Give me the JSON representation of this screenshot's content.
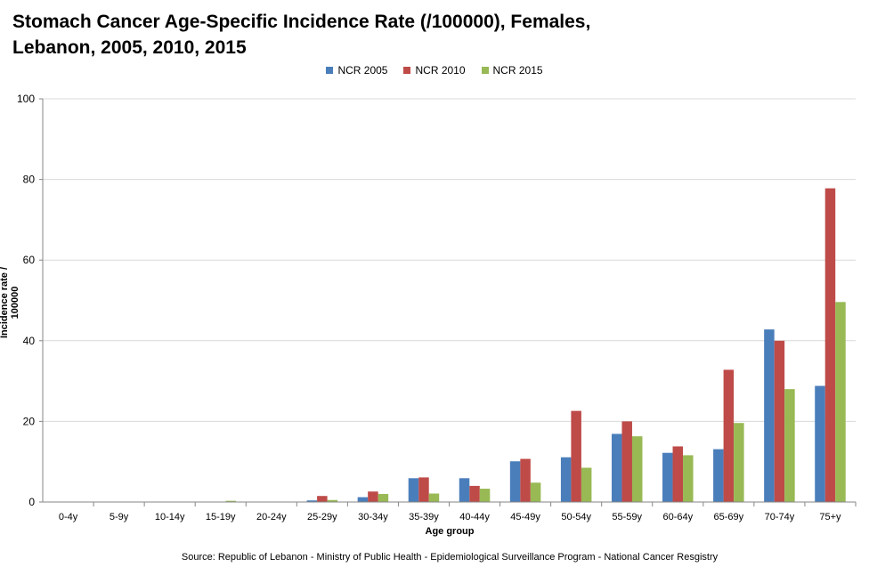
{
  "chart_data": {
    "type": "bar",
    "title": "Stomach Cancer Age-Specific Incidence Rate (/100000), Females, Lebanon, 2005, 2010, 2015",
    "title_lines": [
      "Stomach Cancer Age-Specific Incidence Rate (/100000),  Females,",
      "Lebanon, 2005, 2010, 2015"
    ],
    "xlabel": "Age group",
    "ylabel": "Incidence  rate  / 100000",
    "ylim": [
      0,
      100
    ],
    "yticks": [
      0,
      20,
      40,
      60,
      80,
      100
    ],
    "grid": true,
    "legend_position": "top-center",
    "categories": [
      "0-4y",
      "5-9y",
      "10-14y",
      "15-19y",
      "20-24y",
      "25-29y",
      "30-34y",
      "35-39y",
      "40-44y",
      "45-49y",
      "50-54y",
      "55-59y",
      "60-64y",
      "65-69y",
      "70-74y",
      "75+y"
    ],
    "series": [
      {
        "name": "NCR 2005",
        "color": "#4a7ebb",
        "values": [
          0,
          0,
          0,
          0,
          0,
          0.4,
          1.2,
          5.9,
          5.9,
          10.1,
          11.1,
          16.9,
          12.2,
          13.1,
          42.8,
          28.8
        ]
      },
      {
        "name": "NCR 2010",
        "color": "#be4b48",
        "values": [
          0,
          0,
          0,
          0,
          0,
          1.5,
          2.6,
          6.1,
          4.0,
          10.7,
          22.6,
          20.0,
          13.8,
          32.8,
          40.0,
          77.8
        ]
      },
      {
        "name": "NCR 2015",
        "color": "#98b954",
        "values": [
          0,
          0,
          0,
          0.3,
          0,
          0.5,
          2.0,
          2.1,
          3.3,
          4.8,
          8.5,
          16.3,
          11.6,
          19.6,
          28.0,
          49.6
        ]
      }
    ]
  },
  "footer": {
    "source": "Source: Republic of Lebanon - Ministry of Public Health - Epidemiological Surveillance Program - National Cancer Resgistry"
  }
}
